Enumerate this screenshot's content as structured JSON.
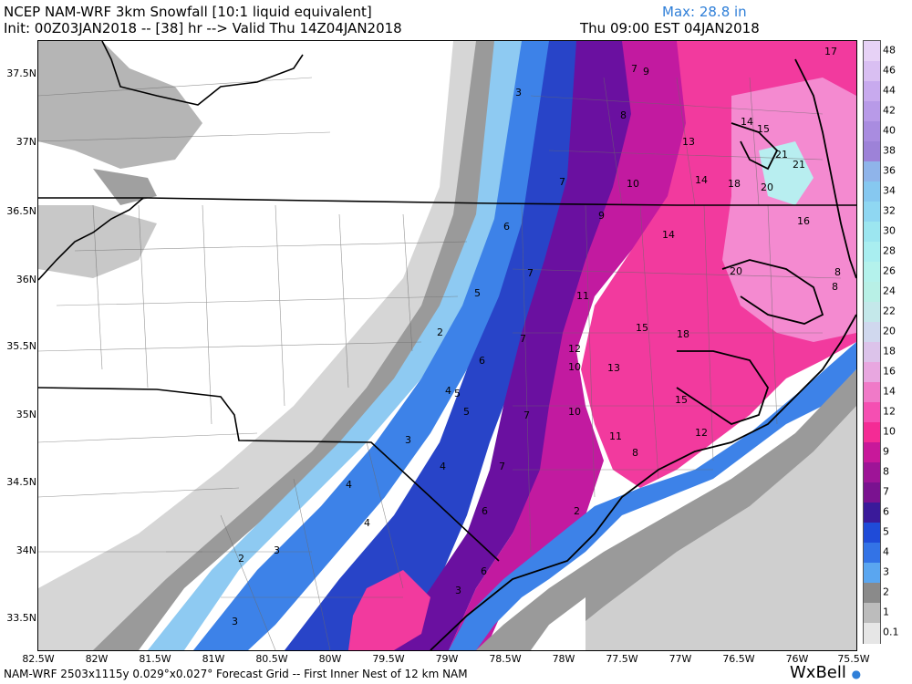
{
  "header": {
    "line1": "NCEP NAM-WRF 3km Snowfall [10:1 liquid equivalent]",
    "max_label": "Max: 28.8 in",
    "line2": "Init: 00Z03JAN2018 -- [38] hr --> Valid Thu 14Z04JAN2018",
    "valid_local": "Thu 09:00 EST 04JAN2018"
  },
  "axes": {
    "lat_labels": [
      "37.5N",
      "37N",
      "36.5N",
      "36N",
      "35.5N",
      "35N",
      "34.5N",
      "34N",
      "33.5N"
    ],
    "lon_labels": [
      "82.5W",
      "82W",
      "81.5W",
      "81W",
      "80.5W",
      "80W",
      "79.5W",
      "79W",
      "78.5W",
      "78W",
      "77.5W",
      "77W",
      "76.5W",
      "76W",
      "75.5W"
    ]
  },
  "colorbar": {
    "labels": [
      "48",
      "46",
      "44",
      "42",
      "40",
      "38",
      "36",
      "34",
      "32",
      "30",
      "28",
      "26",
      "24",
      "22",
      "20",
      "18",
      "16",
      "14",
      "12",
      "10",
      "9",
      "8",
      "7",
      "6",
      "5",
      "4",
      "3",
      "2",
      "1",
      "0.1"
    ],
    "colors": [
      "#e7d2f6",
      "#d9bff2",
      "#c8aaee",
      "#b89ae8",
      "#a98ce0",
      "#9d82d8",
      "#8fb4ea",
      "#86c8f0",
      "#8fd7f2",
      "#9ce6f0",
      "#a9eef0",
      "#b4f2ec",
      "#b8f0e6",
      "#c4e8ea",
      "#d0d8ee",
      "#dcc3ea",
      "#e8a7e0",
      "#f07ac8",
      "#f54fb2",
      "#f42b95",
      "#c8189a",
      "#9e1497",
      "#7a1290",
      "#3a1a9a",
      "#1f4bd8",
      "#3373e6",
      "#5aa6f0",
      "#8a8a8a",
      "#bcbcbc",
      "#e6e6e6"
    ]
  },
  "snow_labels": [
    {
      "t": "7"
    },
    {
      "t": "9"
    },
    {
      "t": "3"
    },
    {
      "t": "8"
    },
    {
      "t": "13"
    },
    {
      "t": "14"
    },
    {
      "t": "15"
    },
    {
      "t": "17"
    },
    {
      "t": "21"
    },
    {
      "t": "21"
    },
    {
      "t": "7"
    },
    {
      "t": "10"
    },
    {
      "t": "14"
    },
    {
      "t": "18"
    },
    {
      "t": "20"
    },
    {
      "t": "9"
    },
    {
      "t": "6"
    },
    {
      "t": "14"
    },
    {
      "t": "16"
    },
    {
      "t": "7"
    },
    {
      "t": "11"
    },
    {
      "t": "20"
    },
    {
      "t": "8"
    },
    {
      "t": "8"
    },
    {
      "t": "5"
    },
    {
      "t": "15"
    },
    {
      "t": "18"
    },
    {
      "t": "7"
    },
    {
      "t": "2"
    },
    {
      "t": "12"
    },
    {
      "t": "6"
    },
    {
      "t": "10"
    },
    {
      "t": "13"
    },
    {
      "t": "4"
    },
    {
      "t": "5"
    },
    {
      "t": "15"
    },
    {
      "t": "5"
    },
    {
      "t": "7"
    },
    {
      "t": "10"
    },
    {
      "t": "3"
    },
    {
      "t": "12"
    },
    {
      "t": "11"
    },
    {
      "t": "8"
    },
    {
      "t": "4"
    },
    {
      "t": "7"
    },
    {
      "t": "4"
    },
    {
      "t": "6"
    },
    {
      "t": "2"
    },
    {
      "t": "4"
    },
    {
      "t": "3"
    },
    {
      "t": "2"
    },
    {
      "t": "6"
    },
    {
      "t": "3"
    },
    {
      "t": "3"
    }
  ],
  "footer": {
    "text": "NAM-WRF 2503x1115y 0.029°x0.027° Forecast Grid -- First Inner Nest of 12 km NAM",
    "brand": "WxBell"
  }
}
